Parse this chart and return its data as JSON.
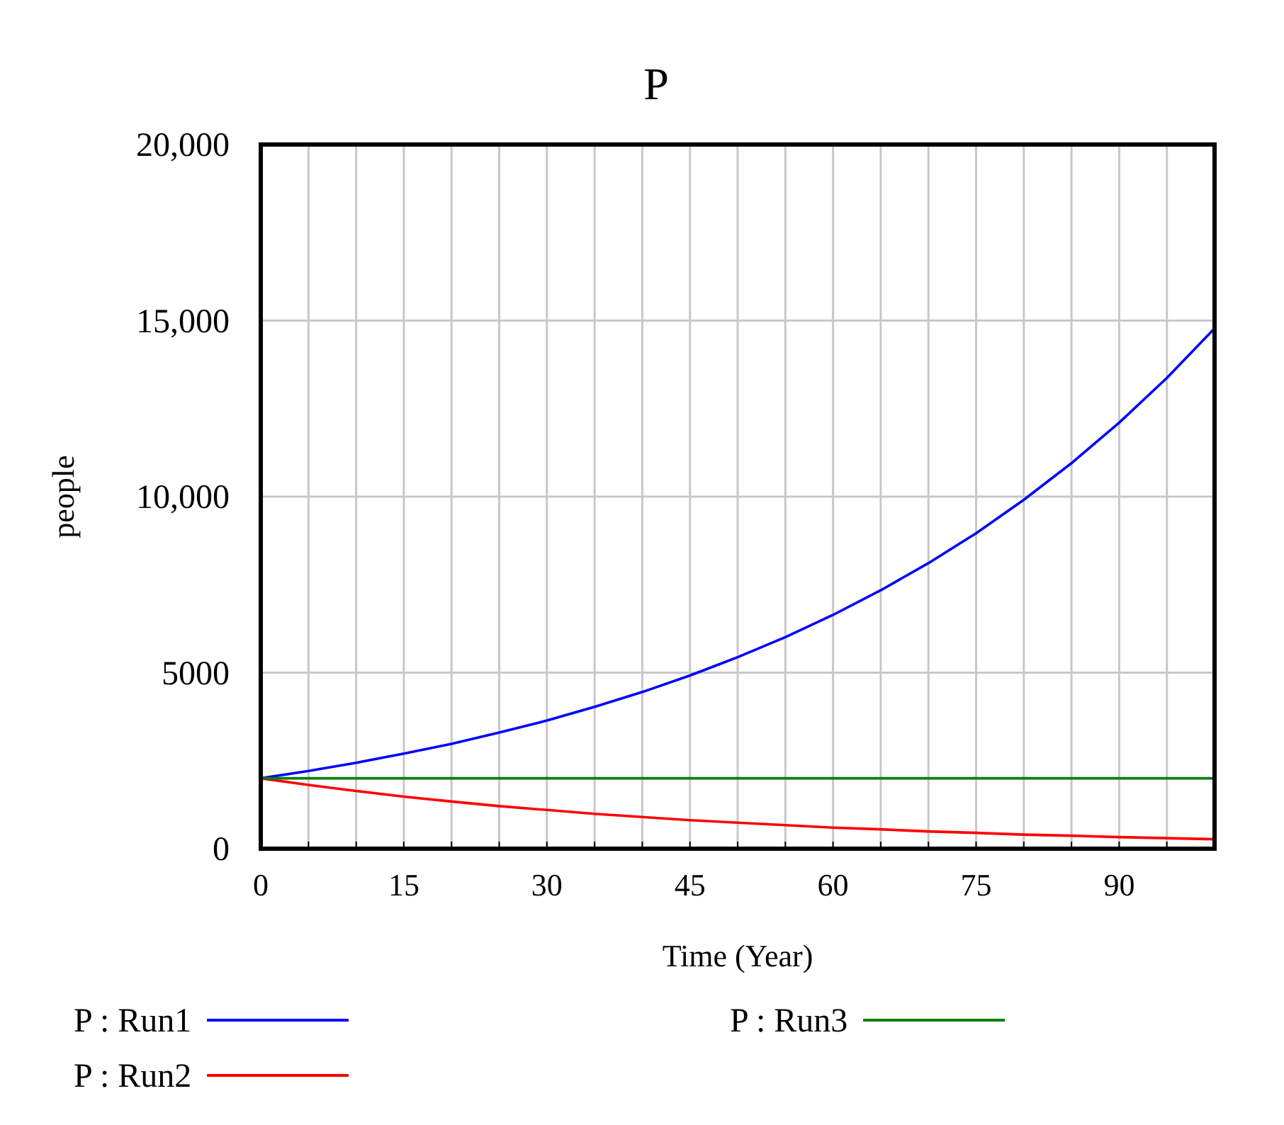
{
  "chart_data": {
    "type": "line",
    "title": "P",
    "xlabel": "Time (Year)",
    "ylabel": "people",
    "x": [
      0,
      5,
      10,
      15,
      20,
      25,
      30,
      35,
      40,
      45,
      50,
      55,
      60,
      65,
      70,
      75,
      80,
      85,
      90,
      95,
      100
    ],
    "xlim": [
      0,
      100
    ],
    "xticks": [
      0,
      {
        "value": 5,
        "label": null
      },
      {
        "value": 10,
        "label": null
      },
      15,
      {
        "value": 20,
        "label": null
      },
      {
        "value": 25,
        "label": null
      },
      30,
      {
        "value": 35,
        "label": null
      },
      {
        "value": 40,
        "label": null
      },
      45,
      {
        "value": 50,
        "label": null
      },
      {
        "value": 55,
        "label": null
      },
      60,
      {
        "value": 65,
        "label": null
      },
      {
        "value": 70,
        "label": null
      },
      75,
      {
        "value": 80,
        "label": null
      },
      {
        "value": 85,
        "label": null
      },
      90,
      {
        "value": 95,
        "label": null
      }
    ],
    "ylim": [
      0,
      20000
    ],
    "yticks": [
      0,
      5000,
      {
        "value": 10000,
        "label": "10,000"
      },
      {
        "value": 15000,
        "label": "15,000"
      },
      {
        "value": 20000,
        "label": "20,000"
      }
    ],
    "grid": true,
    "legend": "bottom",
    "series": [
      {
        "name": "P : Run1",
        "color": "#0000ff",
        "values": [
          2000,
          2210,
          2440,
          2700,
          2980,
          3300,
          3640,
          4030,
          4450,
          4920,
          5440,
          6010,
          6640,
          7340,
          8110,
          8960,
          9910,
          10950,
          12100,
          13370,
          14780
        ]
      },
      {
        "name": "P : Run2",
        "color": "#ff0000",
        "values": [
          2000,
          1810,
          1640,
          1480,
          1340,
          1210,
          1100,
          990,
          900,
          810,
          740,
          670,
          600,
          550,
          490,
          450,
          400,
          370,
          330,
          300,
          270
        ]
      },
      {
        "name": "P : Run3",
        "color": "#008000",
        "values": [
          2000,
          2000,
          2000,
          2000,
          2000,
          2000,
          2000,
          2000,
          2000,
          2000,
          2000,
          2000,
          2000,
          2000,
          2000,
          2000,
          2000,
          2000,
          2000,
          2000,
          2000
        ]
      }
    ]
  }
}
